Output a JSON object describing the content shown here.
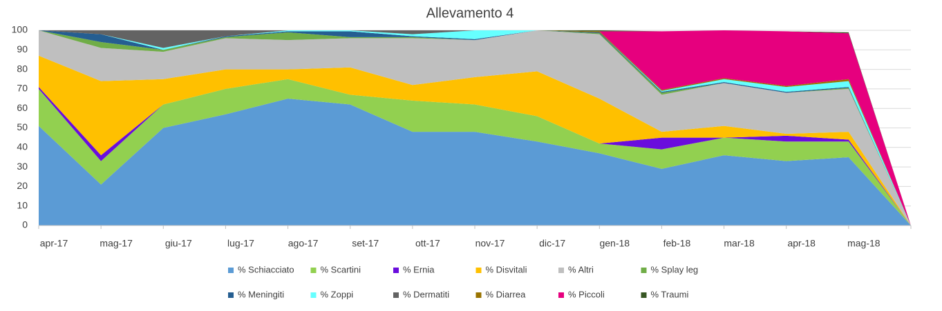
{
  "chart_data": {
    "type": "stacked_area",
    "title": "Allevamento 4",
    "categories": [
      "apr-17",
      "mag-17",
      "giu-17",
      "lug-17",
      "ago-17",
      "set-17",
      "ott-17",
      "nov-17",
      "dic-17",
      "gen-18",
      "feb-18",
      "mar-18",
      "apr-18",
      "mag-18",
      null
    ],
    "ylim": [
      0,
      100
    ],
    "yticks": [
      0,
      10,
      20,
      30,
      40,
      50,
      60,
      70,
      80,
      90,
      100
    ],
    "grid": true,
    "legend": "bottom",
    "series": [
      {
        "name": "% Schiacciato",
        "color": "#5b9bd5",
        "values": [
          51,
          21,
          50,
          57,
          65,
          62,
          48,
          48,
          43,
          37,
          29,
          36,
          33,
          35,
          0
        ]
      },
      {
        "name": "% Scartini",
        "color": "#92d050",
        "values": [
          19,
          12,
          12,
          13,
          10,
          5,
          16,
          14,
          13,
          5,
          10,
          9,
          10,
          8,
          0
        ]
      },
      {
        "name": "% Ernia",
        "color": "#6a0ddd",
        "values": [
          1,
          3,
          0,
          0,
          0,
          0,
          0,
          0,
          0,
          0,
          6,
          0,
          3,
          1,
          0
        ]
      },
      {
        "name": "% Disvitali",
        "color": "#ffc000",
        "values": [
          16,
          38,
          13,
          10,
          5,
          14,
          8,
          14,
          23,
          23,
          3,
          6,
          1,
          4,
          0
        ]
      },
      {
        "name": "% Altri",
        "color": "#bfbfbf",
        "values": [
          13,
          17,
          14,
          16,
          15,
          15,
          24,
          19,
          21,
          33,
          19,
          22,
          21,
          22,
          0
        ]
      },
      {
        "name": "% Splay leg",
        "color": "#70ad47",
        "values": [
          0,
          3,
          1,
          0.5,
          4,
          0.5,
          0.5,
          0,
          0,
          0.5,
          1,
          0,
          0,
          0.5,
          0
        ]
      },
      {
        "name": "% Meningiti",
        "color": "#255e91",
        "values": [
          0,
          4,
          0,
          0.5,
          0.5,
          3,
          0.5,
          0.5,
          0,
          0.5,
          0.5,
          0.5,
          0.5,
          0.5,
          0
        ]
      },
      {
        "name": "% Zoppi",
        "color": "#66ffff",
        "values": [
          0,
          0,
          1,
          0,
          0.5,
          0.5,
          1,
          4.5,
          0,
          0,
          0.5,
          1.5,
          2.5,
          3,
          0
        ]
      },
      {
        "name": "% Dermatiti",
        "color": "#636363",
        "values": [
          0,
          2,
          9,
          3,
          0,
          0,
          2,
          0,
          0,
          0,
          0,
          0,
          0,
          0,
          0
        ]
      },
      {
        "name": "% Diarrea",
        "color": "#997300",
        "values": [
          0,
          0,
          0,
          0,
          0,
          0,
          0,
          0,
          0,
          0.5,
          0.5,
          0.5,
          0.5,
          1,
          0
        ]
      },
      {
        "name": "% Piccoli",
        "color": "#e6007e",
        "values": [
          0,
          0,
          0,
          0,
          0,
          0,
          0,
          0,
          0,
          0,
          30,
          24.5,
          28,
          23.5,
          0
        ]
      },
      {
        "name": "% Traumi",
        "color": "#375623",
        "values": [
          0,
          0,
          0,
          0,
          0,
          0,
          0,
          0,
          0,
          0.5,
          0,
          0,
          0,
          0.5,
          0
        ]
      }
    ]
  }
}
